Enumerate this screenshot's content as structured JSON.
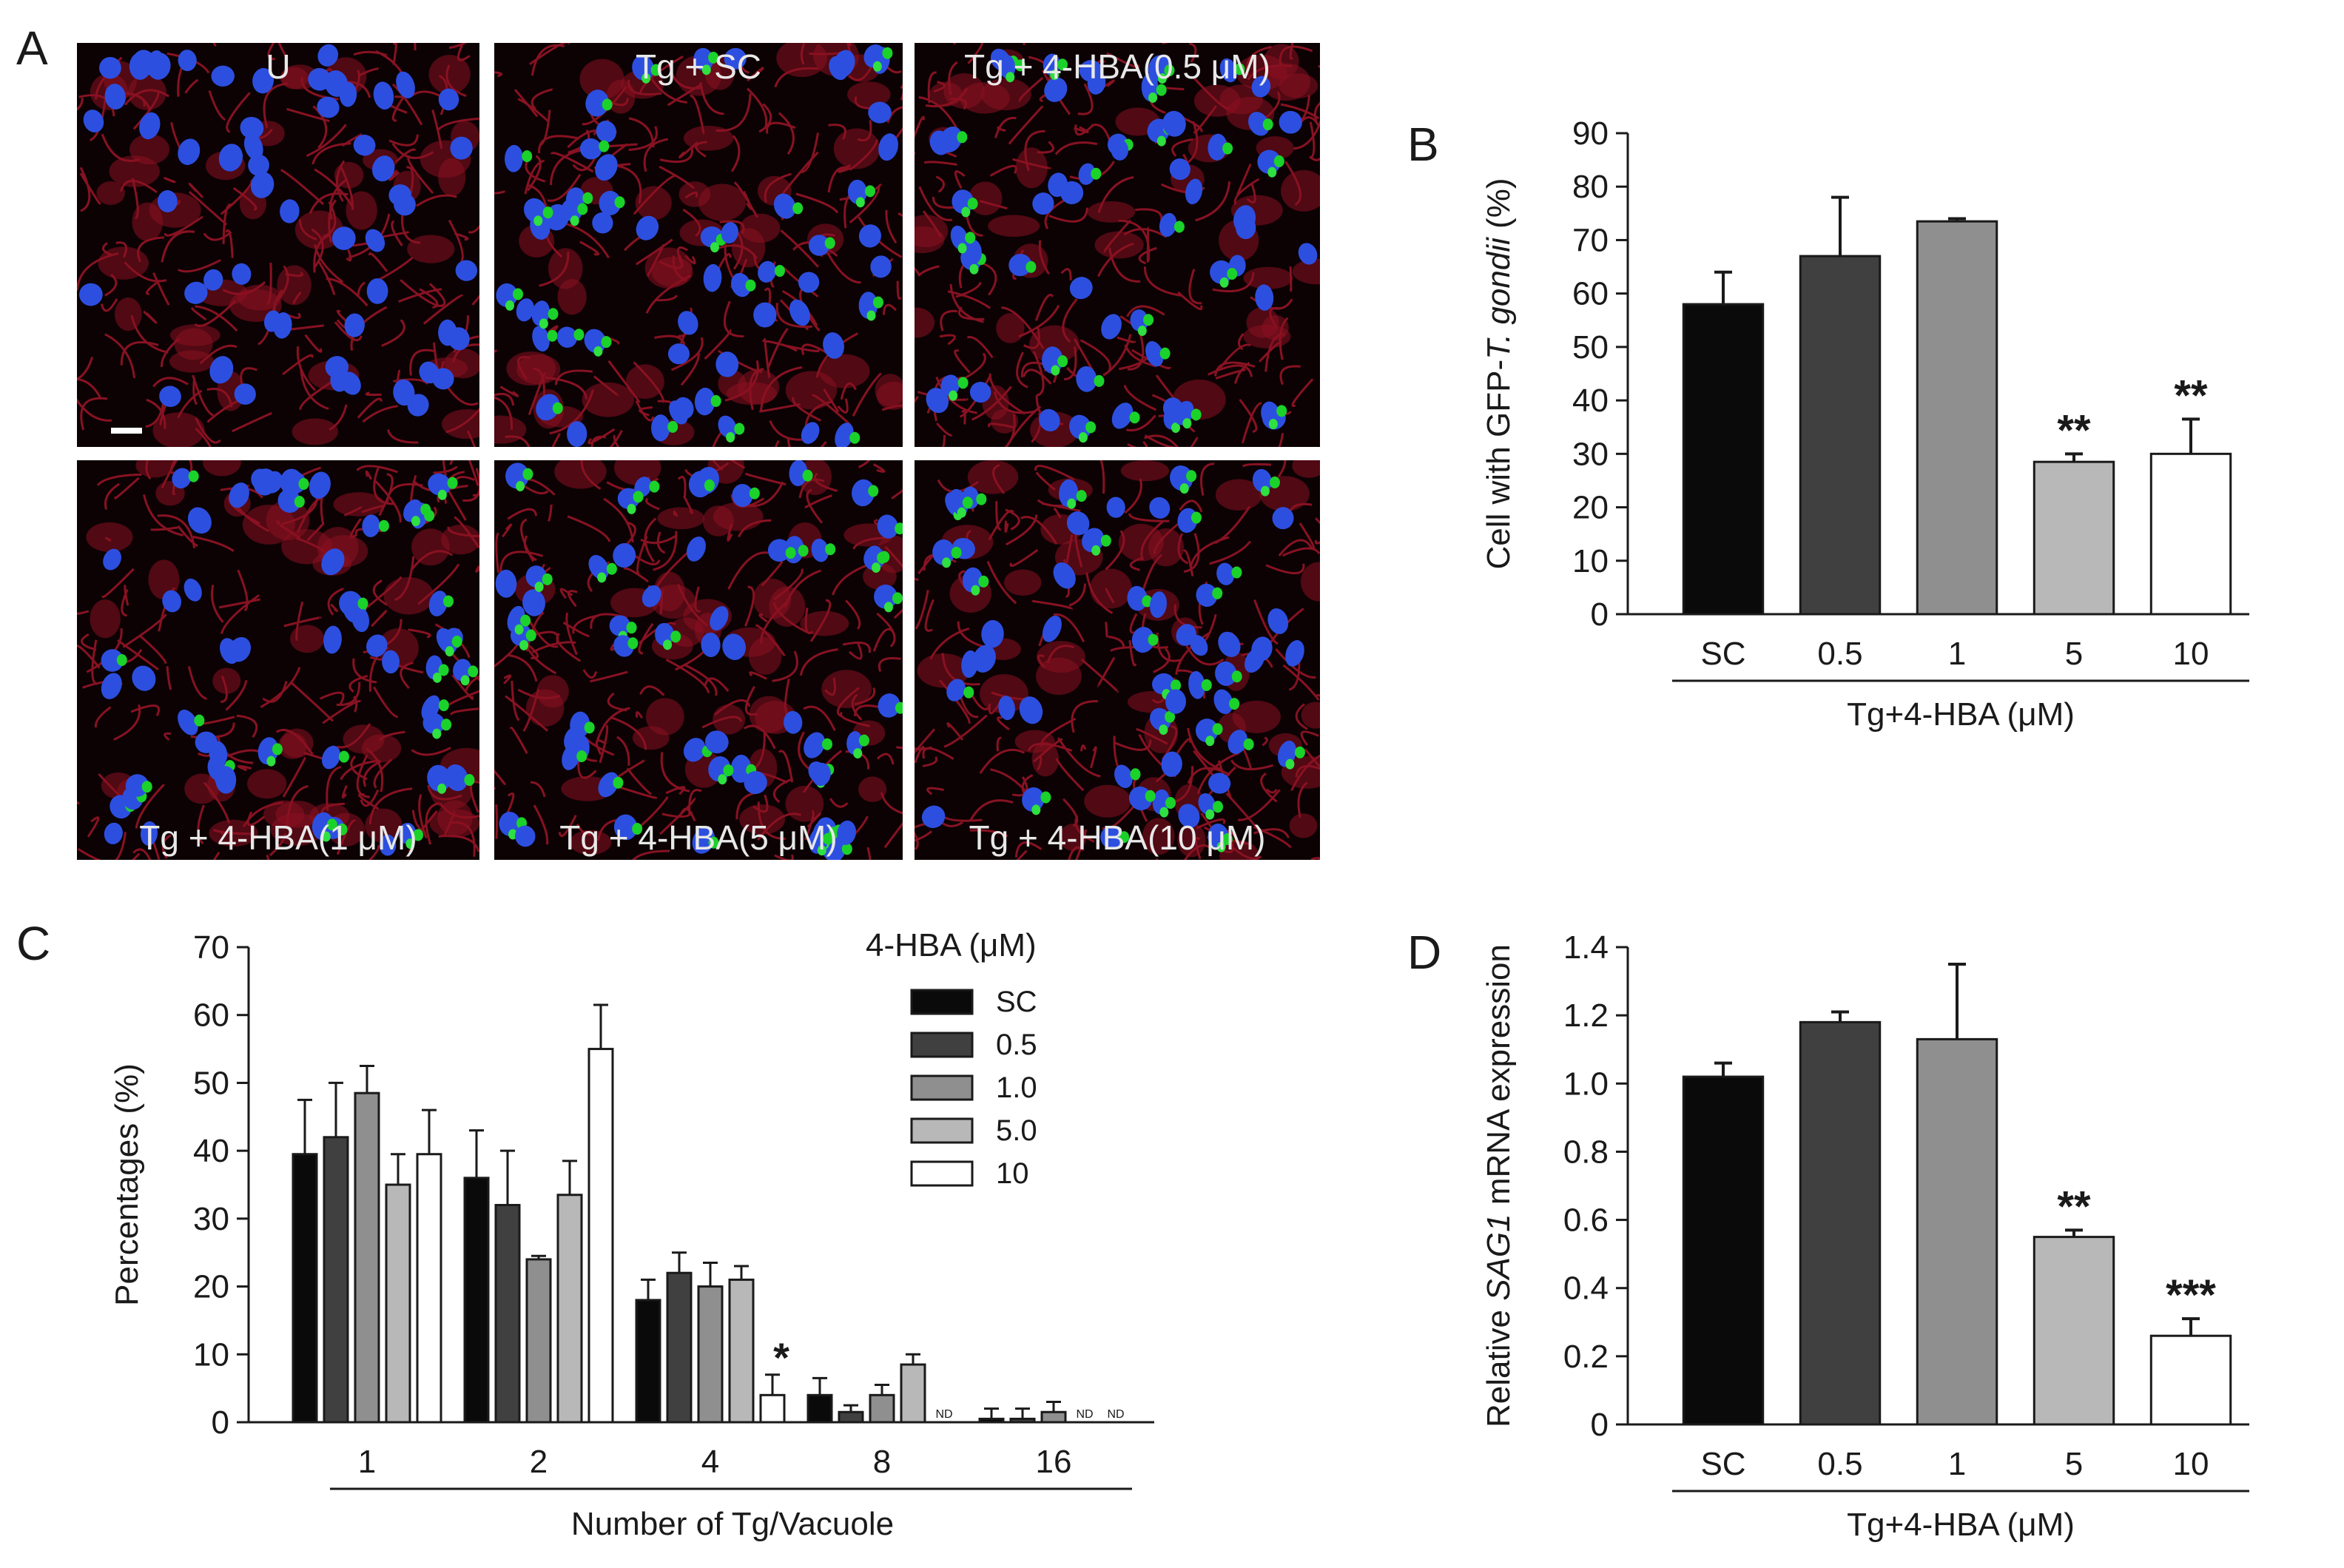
{
  "panels": {
    "a": {
      "letter": "A",
      "tiles": [
        {
          "label": "U",
          "green": false
        },
        {
          "label": "Tg + SC",
          "green": true
        },
        {
          "label": "Tg + 4-HBA(0.5 μM)",
          "green": true
        },
        {
          "label": "Tg + 4-HBA(1 μM)",
          "green": true
        },
        {
          "label": "Tg + 4-HBA(5 μM)",
          "green": true
        },
        {
          "label": "Tg + 4-HBA(10 μM)",
          "green": true
        }
      ]
    },
    "b": {
      "letter": "B"
    },
    "c": {
      "letter": "C"
    },
    "d": {
      "letter": "D"
    }
  },
  "chart_data": [
    {
      "panel": "B",
      "type": "bar",
      "categories": [
        "SC",
        "0.5",
        "1",
        "5",
        "10"
      ],
      "values": [
        58,
        67,
        73.5,
        28.5,
        30
      ],
      "errors": [
        6,
        11,
        0.5,
        1.5,
        6.5
      ],
      "significance": [
        "",
        "",
        "",
        "**",
        "**"
      ],
      "colors": [
        "#0a0a0a",
        "#404040",
        "#8f8f8f",
        "#b8b8b8",
        "#ffffff"
      ],
      "xlabel": "Tg+4-HBA (μM)",
      "ylabel_parts": [
        "Cell with GFP-",
        "T. gondii",
        " (%)"
      ],
      "ylim": [
        0,
        90
      ],
      "yticks": [
        "0",
        "10",
        "20",
        "30",
        "40",
        "50",
        "60",
        "70",
        "80",
        "90"
      ]
    },
    {
      "panel": "C",
      "type": "bar",
      "categories": [
        "1",
        "2",
        "4",
        "8",
        "16"
      ],
      "series": [
        {
          "name": "SC",
          "color": "#0a0a0a",
          "values": [
            39.5,
            36,
            18,
            4,
            0.5
          ],
          "errors": [
            8,
            7,
            3,
            2.5,
            1.5
          ],
          "flags": [
            "",
            "",
            "",
            "",
            ""
          ]
        },
        {
          "name": "0.5",
          "color": "#404040",
          "values": [
            42,
            32,
            22,
            1.5,
            0.5
          ],
          "errors": [
            8,
            8,
            3,
            1,
            1.5
          ],
          "flags": [
            "",
            "",
            "",
            "",
            ""
          ]
        },
        {
          "name": "1.0",
          "color": "#8f8f8f",
          "values": [
            48.5,
            24,
            20,
            4,
            1.5
          ],
          "errors": [
            4,
            0.5,
            3.5,
            1.5,
            1.5
          ],
          "flags": [
            "",
            "",
            "",
            "",
            ""
          ]
        },
        {
          "name": "5.0",
          "color": "#b8b8b8",
          "values": [
            35,
            33.5,
            21,
            8.5,
            0
          ],
          "errors": [
            4.5,
            5,
            2,
            1.5,
            0
          ],
          "flags": [
            "",
            "",
            "",
            "",
            "ND"
          ]
        },
        {
          "name": "10",
          "color": "#ffffff",
          "values": [
            39.5,
            55,
            4,
            0,
            0
          ],
          "errors": [
            6.5,
            6.5,
            3,
            0,
            0
          ],
          "flags": [
            "",
            "",
            "*",
            "ND",
            "ND"
          ]
        }
      ],
      "legend_title": "4-HBA (μM)",
      "xlabel": "Number of Tg/Vacuole",
      "ylabel": "Percentages (%)",
      "ylim": [
        0,
        70
      ],
      "yticks": [
        "0",
        "10",
        "20",
        "30",
        "40",
        "50",
        "60",
        "70"
      ],
      "legend_position": "top-right"
    },
    {
      "panel": "D",
      "type": "bar",
      "categories": [
        "SC",
        "0.5",
        "1",
        "5",
        "10"
      ],
      "values": [
        1.02,
        1.18,
        1.13,
        0.55,
        0.26
      ],
      "errors": [
        0.04,
        0.03,
        0.22,
        0.02,
        0.05
      ],
      "significance": [
        "",
        "",
        "",
        "**",
        "***"
      ],
      "colors": [
        "#0a0a0a",
        "#404040",
        "#8f8f8f",
        "#b8b8b8",
        "#ffffff"
      ],
      "xlabel": "Tg+4-HBA (μM)",
      "ylabel_parts": [
        "Relative ",
        "SAG1",
        " mRNA expression"
      ],
      "ylim": [
        0,
        1.4
      ],
      "yticks": [
        "0",
        "0.2",
        "0.4",
        "0.6",
        "0.8",
        "1.0",
        "1.2",
        "1.4"
      ]
    }
  ]
}
